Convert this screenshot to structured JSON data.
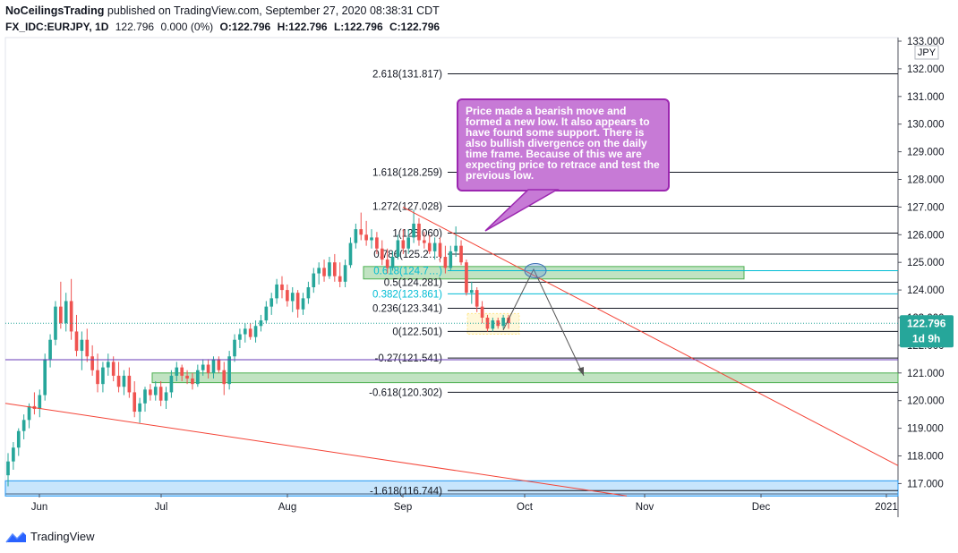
{
  "header": {
    "author": "NoCeilingsTrading",
    "published_text": "published on TradingView.com, September 27, 2020 08:38:31 CDT",
    "symbol": "FX_IDC:EURJPY, 1D",
    "last": "122.796",
    "change": "0.000 (0%)",
    "open": "O:122.796",
    "high": "H:122.796",
    "low": "L:122.796",
    "close": "C:122.796"
  },
  "brand": {
    "name": "TradingView",
    "icon": "tradingview-logo-icon"
  },
  "colors": {
    "bull": "#26a69a",
    "bear": "#ef5350",
    "fib": "#131722",
    "fib_highlight": "#00bcd4",
    "zone_green": "#4caf50",
    "zone_blue": "#2196f3",
    "callout": "#c77ad6",
    "trend_line": "#f44336",
    "price_badge": "#26a69a",
    "price_line": "#26a69a"
  },
  "chart_data": {
    "type": "candlestick",
    "currency_label": "JPY",
    "y_axis_ticks": [
      "133.000",
      "132.000",
      "131.000",
      "130.000",
      "129.000",
      "128.000",
      "127.000",
      "126.000",
      "125.000",
      "124.000",
      "123.000",
      "122.000",
      "121.000",
      "120.000",
      "119.000",
      "118.000",
      "117.000"
    ],
    "ylim": [
      116.5,
      133.1
    ],
    "x_axis_labels": [
      "Jun",
      "Jul",
      "Aug",
      "Sep",
      "Oct",
      "Nov",
      "Dec",
      "2021"
    ],
    "last_price": {
      "value": 122.796,
      "label": "122.796",
      "countdown": "1d 9h"
    },
    "fib_levels": [
      {
        "label": "2.618(131.817)",
        "value": 131.817,
        "highlight": false
      },
      {
        "label": "1.618(128.259)",
        "value": 128.259,
        "highlight": false
      },
      {
        "label": "1.272(127.028)",
        "value": 127.028,
        "highlight": false
      },
      {
        "label": "1(126.060)",
        "value": 126.06,
        "highlight": false
      },
      {
        "label": "0.786(125.2…)",
        "value": 125.298,
        "highlight": false
      },
      {
        "label": "0.618(124.7…)",
        "value": 124.701,
        "highlight": true
      },
      {
        "label": "0.5(124.281)",
        "value": 124.281,
        "highlight": false
      },
      {
        "label": "0.382(123.861)",
        "value": 123.861,
        "highlight": true
      },
      {
        "label": "0.236(123.341)",
        "value": 123.341,
        "highlight": false
      },
      {
        "label": "0(122.501)",
        "value": 122.501,
        "highlight": false
      },
      {
        "label": "-0.27(121.541)",
        "value": 121.541,
        "highlight": false
      },
      {
        "label": "-0.618(120.302)",
        "value": 120.302,
        "highlight": false
      },
      {
        "label": "-1.618(116.744)",
        "value": 116.744,
        "highlight": false
      }
    ],
    "zones": [
      {
        "name": "resistance-zone",
        "top": 124.85,
        "bottom": 124.4,
        "color": "green"
      },
      {
        "name": "support-zone",
        "top": 121.0,
        "bottom": 120.65,
        "color": "green"
      },
      {
        "name": "lower-zone",
        "top": 117.1,
        "bottom": 116.55,
        "color": "blue"
      }
    ],
    "annotation": "Price made a bearish move and formed a new low.  It also appears to have found some support. There is also bullish divergence on the daily time frame. Because of this we are expecting price to retrace and test the previous low.",
    "candles": [
      {
        "o": 117.3,
        "h": 118.1,
        "l": 116.9,
        "c": 117.8
      },
      {
        "o": 117.8,
        "h": 118.5,
        "l": 117.5,
        "c": 118.3
      },
      {
        "o": 118.3,
        "h": 119.0,
        "l": 118.0,
        "c": 118.9
      },
      {
        "o": 118.9,
        "h": 119.5,
        "l": 118.6,
        "c": 119.3
      },
      {
        "o": 119.3,
        "h": 119.9,
        "l": 119.0,
        "c": 119.8
      },
      {
        "o": 119.8,
        "h": 120.3,
        "l": 119.5,
        "c": 119.7
      },
      {
        "o": 119.7,
        "h": 120.4,
        "l": 119.4,
        "c": 120.2
      },
      {
        "o": 120.2,
        "h": 121.7,
        "l": 120.0,
        "c": 121.5
      },
      {
        "o": 121.5,
        "h": 122.4,
        "l": 121.2,
        "c": 122.2
      },
      {
        "o": 122.2,
        "h": 123.6,
        "l": 122.0,
        "c": 123.4
      },
      {
        "o": 123.4,
        "h": 124.3,
        "l": 122.6,
        "c": 122.8
      },
      {
        "o": 122.8,
        "h": 123.9,
        "l": 122.5,
        "c": 123.6
      },
      {
        "o": 123.6,
        "h": 124.4,
        "l": 122.2,
        "c": 122.5
      },
      {
        "o": 122.5,
        "h": 123.1,
        "l": 121.6,
        "c": 121.8
      },
      {
        "o": 121.8,
        "h": 122.5,
        "l": 121.1,
        "c": 122.2
      },
      {
        "o": 122.2,
        "h": 122.6,
        "l": 121.4,
        "c": 121.6
      },
      {
        "o": 121.6,
        "h": 122.0,
        "l": 120.9,
        "c": 121.1
      },
      {
        "o": 121.1,
        "h": 121.7,
        "l": 120.3,
        "c": 120.6
      },
      {
        "o": 120.6,
        "h": 121.4,
        "l": 120.3,
        "c": 121.2
      },
      {
        "o": 121.2,
        "h": 121.7,
        "l": 120.9,
        "c": 121.4
      },
      {
        "o": 121.4,
        "h": 121.6,
        "l": 120.7,
        "c": 120.9
      },
      {
        "o": 120.9,
        "h": 121.4,
        "l": 120.3,
        "c": 120.5
      },
      {
        "o": 120.5,
        "h": 121.1,
        "l": 120.2,
        "c": 120.9
      },
      {
        "o": 120.9,
        "h": 121.2,
        "l": 120.1,
        "c": 120.3
      },
      {
        "o": 120.3,
        "h": 120.7,
        "l": 119.4,
        "c": 119.6
      },
      {
        "o": 119.6,
        "h": 120.1,
        "l": 119.2,
        "c": 119.9
      },
      {
        "o": 119.9,
        "h": 120.5,
        "l": 119.6,
        "c": 120.4
      },
      {
        "o": 120.4,
        "h": 120.6,
        "l": 120.0,
        "c": 120.2
      },
      {
        "o": 120.2,
        "h": 120.7,
        "l": 120.0,
        "c": 120.5
      },
      {
        "o": 120.5,
        "h": 120.7,
        "l": 119.8,
        "c": 120.0
      },
      {
        "o": 120.0,
        "h": 120.5,
        "l": 119.7,
        "c": 120.3
      },
      {
        "o": 120.3,
        "h": 121.1,
        "l": 120.1,
        "c": 120.9
      },
      {
        "o": 120.9,
        "h": 121.4,
        "l": 120.7,
        "c": 121.2
      },
      {
        "o": 121.2,
        "h": 121.3,
        "l": 120.7,
        "c": 120.9
      },
      {
        "o": 120.9,
        "h": 121.1,
        "l": 120.6,
        "c": 120.8
      },
      {
        "o": 120.8,
        "h": 121.0,
        "l": 120.4,
        "c": 120.6
      },
      {
        "o": 120.6,
        "h": 121.3,
        "l": 120.5,
        "c": 121.1
      },
      {
        "o": 121.1,
        "h": 121.5,
        "l": 120.9,
        "c": 121.3
      },
      {
        "o": 121.3,
        "h": 121.5,
        "l": 120.8,
        "c": 121.0
      },
      {
        "o": 121.0,
        "h": 121.6,
        "l": 120.8,
        "c": 121.5
      },
      {
        "o": 121.5,
        "h": 121.6,
        "l": 121.0,
        "c": 121.1
      },
      {
        "o": 121.1,
        "h": 121.4,
        "l": 120.2,
        "c": 120.6
      },
      {
        "o": 120.6,
        "h": 121.8,
        "l": 120.4,
        "c": 121.6
      },
      {
        "o": 121.6,
        "h": 122.4,
        "l": 121.4,
        "c": 122.2
      },
      {
        "o": 122.2,
        "h": 122.6,
        "l": 121.9,
        "c": 122.4
      },
      {
        "o": 122.4,
        "h": 122.8,
        "l": 122.1,
        "c": 122.6
      },
      {
        "o": 122.6,
        "h": 122.8,
        "l": 122.2,
        "c": 122.3
      },
      {
        "o": 122.3,
        "h": 122.9,
        "l": 122.1,
        "c": 122.7
      },
      {
        "o": 122.7,
        "h": 123.1,
        "l": 122.5,
        "c": 122.9
      },
      {
        "o": 122.9,
        "h": 123.6,
        "l": 122.8,
        "c": 123.4
      },
      {
        "o": 123.4,
        "h": 123.9,
        "l": 123.1,
        "c": 123.7
      },
      {
        "o": 123.7,
        "h": 124.4,
        "l": 123.5,
        "c": 124.2
      },
      {
        "o": 124.2,
        "h": 124.5,
        "l": 123.7,
        "c": 124.0
      },
      {
        "o": 124.0,
        "h": 124.2,
        "l": 123.4,
        "c": 123.6
      },
      {
        "o": 123.6,
        "h": 124.1,
        "l": 123.2,
        "c": 123.9
      },
      {
        "o": 123.9,
        "h": 124.0,
        "l": 123.0,
        "c": 123.3
      },
      {
        "o": 123.3,
        "h": 123.9,
        "l": 123.1,
        "c": 123.7
      },
      {
        "o": 123.7,
        "h": 124.3,
        "l": 123.5,
        "c": 124.1
      },
      {
        "o": 124.1,
        "h": 124.8,
        "l": 123.9,
        "c": 124.6
      },
      {
        "o": 124.6,
        "h": 125.0,
        "l": 124.2,
        "c": 124.8
      },
      {
        "o": 124.8,
        "h": 125.1,
        "l": 124.3,
        "c": 124.5
      },
      {
        "o": 124.5,
        "h": 125.2,
        "l": 124.4,
        "c": 125.0
      },
      {
        "o": 125.0,
        "h": 125.3,
        "l": 124.3,
        "c": 124.5
      },
      {
        "o": 124.5,
        "h": 125.0,
        "l": 124.1,
        "c": 124.3
      },
      {
        "o": 124.3,
        "h": 125.1,
        "l": 124.1,
        "c": 124.9
      },
      {
        "o": 124.9,
        "h": 125.9,
        "l": 124.8,
        "c": 125.7
      },
      {
        "o": 125.7,
        "h": 126.4,
        "l": 125.5,
        "c": 126.2
      },
      {
        "o": 126.2,
        "h": 126.8,
        "l": 125.8,
        "c": 126.0
      },
      {
        "o": 126.0,
        "h": 126.5,
        "l": 125.6,
        "c": 125.8
      },
      {
        "o": 125.8,
        "h": 126.2,
        "l": 125.5,
        "c": 125.9
      },
      {
        "o": 125.9,
        "h": 126.1,
        "l": 125.3,
        "c": 125.5
      },
      {
        "o": 125.5,
        "h": 125.8,
        "l": 124.9,
        "c": 125.1
      },
      {
        "o": 125.1,
        "h": 125.5,
        "l": 124.6,
        "c": 124.8
      },
      {
        "o": 124.8,
        "h": 125.4,
        "l": 124.7,
        "c": 125.2
      },
      {
        "o": 125.2,
        "h": 126.0,
        "l": 125.1,
        "c": 125.8
      },
      {
        "o": 125.8,
        "h": 126.2,
        "l": 125.3,
        "c": 125.5
      },
      {
        "o": 125.5,
        "h": 126.2,
        "l": 125.3,
        "c": 125.9
      },
      {
        "o": 125.9,
        "h": 126.9,
        "l": 125.7,
        "c": 126.4
      },
      {
        "o": 126.4,
        "h": 126.6,
        "l": 125.6,
        "c": 125.8
      },
      {
        "o": 125.8,
        "h": 126.1,
        "l": 125.5,
        "c": 125.7
      },
      {
        "o": 125.7,
        "h": 126.0,
        "l": 125.3,
        "c": 125.4
      },
      {
        "o": 125.4,
        "h": 125.9,
        "l": 125.1,
        "c": 125.7
      },
      {
        "o": 125.7,
        "h": 125.9,
        "l": 125.0,
        "c": 125.2
      },
      {
        "o": 125.2,
        "h": 125.6,
        "l": 124.6,
        "c": 124.8
      },
      {
        "o": 124.8,
        "h": 125.6,
        "l": 124.7,
        "c": 125.4
      },
      {
        "o": 125.4,
        "h": 126.3,
        "l": 125.2,
        "c": 125.6
      },
      {
        "o": 125.6,
        "h": 125.8,
        "l": 124.9,
        "c": 125.0
      },
      {
        "o": 125.0,
        "h": 125.1,
        "l": 123.8,
        "c": 123.9
      },
      {
        "o": 123.9,
        "h": 124.3,
        "l": 123.5,
        "c": 124.0
      },
      {
        "o": 124.0,
        "h": 124.1,
        "l": 123.2,
        "c": 123.4
      },
      {
        "o": 123.4,
        "h": 123.6,
        "l": 122.8,
        "c": 123.0
      },
      {
        "o": 123.0,
        "h": 123.1,
        "l": 122.5,
        "c": 122.6
      },
      {
        "o": 122.6,
        "h": 123.0,
        "l": 122.5,
        "c": 122.9
      },
      {
        "o": 122.9,
        "h": 123.0,
        "l": 122.6,
        "c": 122.7
      },
      {
        "o": 122.7,
        "h": 123.1,
        "l": 122.6,
        "c": 123.0
      },
      {
        "o": 123.0,
        "h": 123.1,
        "l": 122.6,
        "c": 122.8
      }
    ]
  }
}
